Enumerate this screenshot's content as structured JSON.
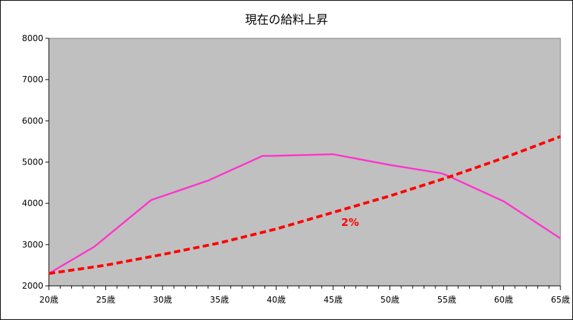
{
  "chart_data": {
    "type": "line",
    "title": "現在の給料上昇",
    "xlabel": "",
    "ylabel": "",
    "ylim": [
      2000,
      8000
    ],
    "yticks": [
      2000,
      3000,
      4000,
      5000,
      6000,
      7000,
      8000
    ],
    "xlim": [
      20,
      65
    ],
    "xticks": [
      20,
      25,
      30,
      35,
      40,
      45,
      50,
      55,
      60,
      65
    ],
    "xtick_labels": [
      "20歳",
      "25歳",
      "30歳",
      "35歳",
      "40歳",
      "45歳",
      "50歳",
      "55歳",
      "60歳",
      "65歳"
    ],
    "grid": false,
    "plot_background": "#c0c0c0",
    "series": [
      {
        "color": "#ff33cc",
        "style": "solid",
        "x": [
          20,
          24,
          29,
          34,
          38.8,
          39.5,
          45,
          50,
          54.5,
          55,
          60,
          65
        ],
        "y": [
          2300,
          2950,
          4080,
          4550,
          5150,
          5150,
          5190,
          4930,
          4730,
          4680,
          4050,
          3150
        ]
      },
      {
        "color": "#ff0000",
        "style": "dashed",
        "x": [
          20,
          25,
          30,
          35,
          40,
          45,
          50,
          55,
          60,
          65
        ],
        "y": [
          2300,
          2500,
          2760,
          3040,
          3380,
          3780,
          4180,
          4620,
          5100,
          5620
        ]
      }
    ],
    "annotations": [
      {
        "text": "2%",
        "x": 46.5,
        "y": 3450,
        "color": "#ff0000"
      }
    ]
  }
}
